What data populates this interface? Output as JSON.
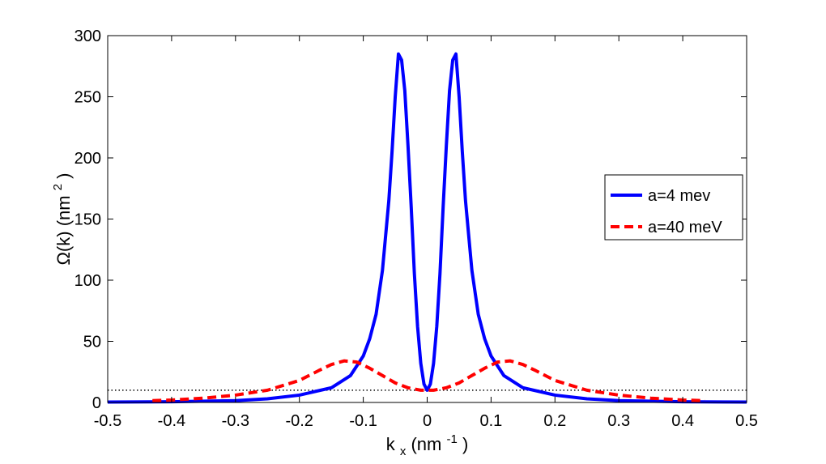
{
  "chart_data": {
    "type": "line",
    "title": "",
    "xlabel": {
      "main": "k",
      "sub": "x",
      "unit_open": "(nm",
      "unit_exp": "-1",
      "unit_close": ")"
    },
    "ylabel": {
      "main": "Ω(k) (nm",
      "exp": "2",
      "close": ")"
    },
    "xlim": [
      -0.5,
      0.5
    ],
    "ylim": [
      0,
      300
    ],
    "xticks": [
      -0.5,
      -0.4,
      -0.3,
      -0.2,
      -0.1,
      0,
      0.1,
      0.2,
      0.3,
      0.4,
      0.5
    ],
    "xtick_labels": [
      "-0.5",
      "-0.4",
      "-0.3",
      "-0.2",
      "-0.1",
      "0",
      "0.1",
      "0.2",
      "0.3",
      "0.4",
      "0.5"
    ],
    "yticks": [
      0,
      50,
      100,
      150,
      200,
      250,
      300
    ],
    "ytick_labels": [
      "0",
      "50",
      "100",
      "150",
      "200",
      "250",
      "300"
    ],
    "legend_position": "right",
    "reference_line": {
      "y": 10,
      "style": "dotted",
      "color": "#000000"
    },
    "series": [
      {
        "name": "a=4 mev",
        "color": "#0000ff",
        "style": "solid",
        "x": [
          -0.5,
          -0.4,
          -0.3,
          -0.25,
          -0.2,
          -0.15,
          -0.12,
          -0.1,
          -0.09,
          -0.08,
          -0.07,
          -0.06,
          -0.055,
          -0.05,
          -0.045,
          -0.04,
          -0.035,
          -0.03,
          -0.025,
          -0.02,
          -0.015,
          -0.01,
          -0.005,
          0,
          0.005,
          0.01,
          0.015,
          0.02,
          0.025,
          0.03,
          0.035,
          0.04,
          0.045,
          0.05,
          0.055,
          0.06,
          0.07,
          0.08,
          0.09,
          0.1,
          0.12,
          0.15,
          0.2,
          0.25,
          0.3,
          0.4,
          0.5
        ],
        "y": [
          0.3,
          0.6,
          1.5,
          3,
          6,
          12,
          22,
          38,
          52,
          72,
          108,
          165,
          205,
          250,
          285,
          280,
          255,
          210,
          160,
          105,
          62,
          32,
          15,
          10,
          15,
          32,
          62,
          105,
          160,
          210,
          255,
          280,
          285,
          250,
          205,
          165,
          108,
          72,
          52,
          38,
          22,
          12,
          6,
          3,
          1.5,
          0.6,
          0.3
        ]
      },
      {
        "name": "a=40 meV",
        "color": "#ff0000",
        "style": "dashed",
        "x": [
          -0.43,
          -0.4,
          -0.35,
          -0.3,
          -0.25,
          -0.2,
          -0.17,
          -0.15,
          -0.13,
          -0.11,
          -0.09,
          -0.07,
          -0.05,
          -0.03,
          -0.01,
          0,
          0.01,
          0.03,
          0.05,
          0.07,
          0.09,
          0.11,
          0.13,
          0.15,
          0.17,
          0.2,
          0.25,
          0.3,
          0.35,
          0.4,
          0.435
        ],
        "y": [
          1.5,
          2,
          3.5,
          6,
          10,
          18,
          26,
          31,
          34,
          33,
          28,
          22,
          16,
          12,
          10,
          10,
          10,
          12,
          16,
          22,
          28,
          33,
          34,
          31,
          26,
          18,
          10,
          6,
          3.5,
          2,
          1.5
        ]
      }
    ]
  }
}
